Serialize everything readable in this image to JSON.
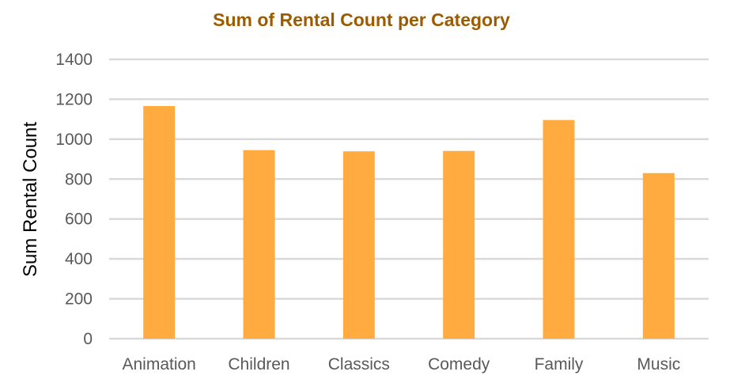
{
  "chart_data": {
    "type": "bar",
    "title": "Sum of Rental Count per Category",
    "xlabel": "",
    "ylabel": "Sum Rental Count",
    "categories": [
      "Animation",
      "Children",
      "Classics",
      "Comedy",
      "Family",
      "Music"
    ],
    "values": [
      1166,
      945,
      939,
      941,
      1096,
      830
    ],
    "ylim": [
      0,
      1400
    ],
    "yticks": [
      0,
      200,
      400,
      600,
      800,
      1000,
      1200,
      1400
    ],
    "grid": true,
    "legend": "none",
    "bar_color": "#FFAB40",
    "title_color": "#9C5B00"
  }
}
